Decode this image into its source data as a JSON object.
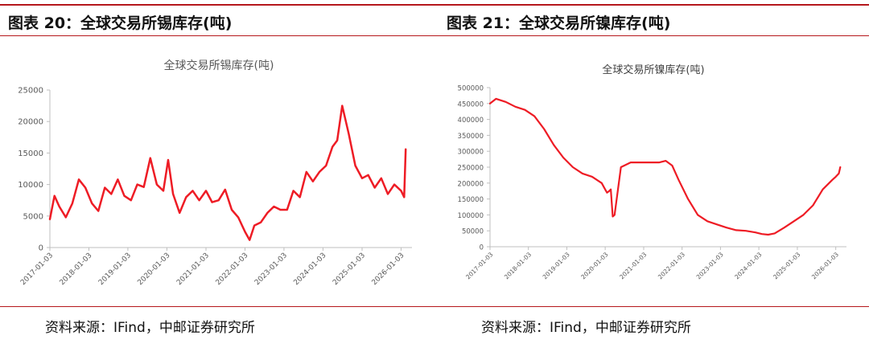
{
  "figures": [
    {
      "caption": "图表 20：全球交易所锡库存(吨)",
      "source": "资料来源：IFind，中邮证券研究所"
    },
    {
      "caption": "图表 21：全球交易所镍库存(吨)",
      "source": "资料来源：IFind，中邮证券研究所"
    }
  ],
  "chart_data": [
    {
      "type": "line",
      "title": "全球交易所锡库存(吨)",
      "xlabel": "",
      "ylabel": "",
      "ylim": [
        0,
        25000
      ],
      "yticks": [
        0,
        5000,
        10000,
        15000,
        20000,
        25000
      ],
      "xticks": [
        "2017-01-03",
        "2018-01-03",
        "2019-01-03",
        "2020-01-03",
        "2021-01-03",
        "2022-01-03",
        "2023-01-03",
        "2024-01-03",
        "2025-01-03",
        "2026-01-03"
      ],
      "grid": false,
      "color": "#ee1c25",
      "series": [
        {
          "x": [
            "2017-01-03",
            "2017-02-15",
            "2017-04-01",
            "2017-06-01",
            "2017-08-01",
            "2017-10-01",
            "2017-12-01",
            "2018-02-01",
            "2018-04-01",
            "2018-06-01",
            "2018-08-01",
            "2018-10-01",
            "2018-12-01",
            "2019-02-01",
            "2019-04-01",
            "2019-06-01",
            "2019-08-01",
            "2019-10-01",
            "2019-12-01",
            "2020-01-15",
            "2020-03-01",
            "2020-05-01",
            "2020-07-01",
            "2020-09-01",
            "2020-11-01",
            "2021-01-03",
            "2021-03-01",
            "2021-05-01",
            "2021-07-01",
            "2021-09-01",
            "2021-11-01",
            "2022-01-03",
            "2022-02-15",
            "2022-04-01",
            "2022-06-01",
            "2022-08-01",
            "2022-10-01",
            "2022-12-01",
            "2023-02-01",
            "2023-04-01",
            "2023-06-01",
            "2023-08-01",
            "2023-10-01",
            "2023-12-01",
            "2024-02-01",
            "2024-04-01",
            "2024-05-15",
            "2024-07-01",
            "2024-09-01",
            "2024-11-01",
            "2025-01-03",
            "2025-03-01",
            "2025-05-01",
            "2025-07-01",
            "2025-09-01",
            "2025-11-01",
            "2026-01-03",
            "2026-02-01",
            "2026-02-15"
          ],
          "y": [
            4500,
            8200,
            6500,
            4800,
            7000,
            10800,
            9500,
            7000,
            5800,
            9500,
            8500,
            10800,
            8200,
            7500,
            10000,
            9600,
            14200,
            10000,
            9000,
            13900,
            8500,
            5500,
            8000,
            9000,
            7500,
            9000,
            7200,
            7500,
            9200,
            6000,
            4800,
            2500,
            1200,
            3500,
            4000,
            5500,
            6500,
            6000,
            6000,
            9000,
            8000,
            12000,
            10500,
            12000,
            13000,
            16000,
            17000,
            22500,
            18000,
            13000,
            11000,
            11500,
            9500,
            11000,
            8500,
            10000,
            9000,
            8000,
            15600
          ]
        }
      ]
    },
    {
      "type": "line",
      "title": "全球交易所镍库存(吨)",
      "xlabel": "",
      "ylabel": "",
      "ylim": [
        0,
        500000
      ],
      "yticks": [
        0,
        50000,
        100000,
        150000,
        200000,
        250000,
        300000,
        350000,
        400000,
        450000,
        500000
      ],
      "xticks": [
        "2017-01-03",
        "2018-01-03",
        "2019-01-03",
        "2020-01-03",
        "2021-01-03",
        "2022-01-03",
        "2023-01-03",
        "2024-01-03",
        "2025-01-03",
        "2026-01-03"
      ],
      "grid": false,
      "color": "#ee1c25",
      "series": [
        {
          "x": [
            "2017-01-03",
            "2017-03-01",
            "2017-06-01",
            "2017-09-01",
            "2017-12-01",
            "2018-03-01",
            "2018-06-01",
            "2018-09-01",
            "2018-12-01",
            "2019-03-01",
            "2019-06-01",
            "2019-09-01",
            "2019-12-01",
            "2020-01-03",
            "2020-01-20",
            "2020-02-10",
            "2020-02-25",
            "2020-03-15",
            "2020-04-01",
            "2020-06-01",
            "2020-09-01",
            "2020-12-01",
            "2021-03-01",
            "2021-06-01",
            "2021-08-01",
            "2021-10-01",
            "2021-12-01",
            "2022-03-01",
            "2022-06-01",
            "2022-09-01",
            "2022-12-01",
            "2023-03-01",
            "2023-06-01",
            "2023-09-01",
            "2023-12-01",
            "2024-02-01",
            "2024-04-01",
            "2024-06-01",
            "2024-09-01",
            "2024-12-01",
            "2025-03-01",
            "2025-06-01",
            "2025-09-01",
            "2025-12-01",
            "2026-01-03",
            "2026-02-01",
            "2026-02-15"
          ],
          "y": [
            450000,
            465000,
            455000,
            440000,
            430000,
            410000,
            370000,
            320000,
            280000,
            250000,
            230000,
            220000,
            200000,
            180000,
            170000,
            175000,
            180000,
            95000,
            100000,
            250000,
            265000,
            265000,
            265000,
            265000,
            270000,
            255000,
            210000,
            150000,
            100000,
            80000,
            70000,
            60000,
            52000,
            50000,
            45000,
            40000,
            38000,
            42000,
            60000,
            80000,
            100000,
            130000,
            180000,
            210000,
            220000,
            230000,
            250000
          ]
        }
      ]
    }
  ]
}
